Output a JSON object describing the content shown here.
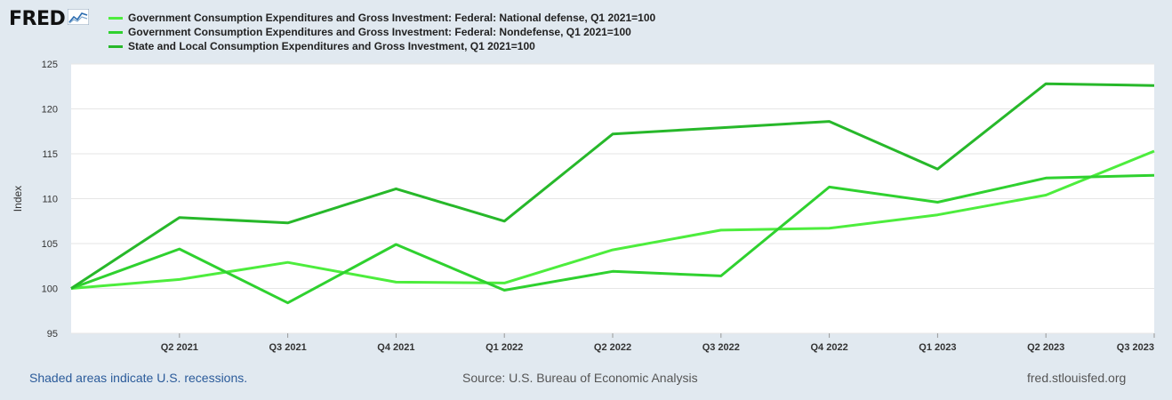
{
  "header": {
    "logo_text": "FRED",
    "logo_icon": "chart-line-icon"
  },
  "colors": {
    "series1": "#4ded3d",
    "series2": "#2fd12f",
    "series3": "#27b82a",
    "background": "#e1e9f0",
    "plot_bg": "#ffffff",
    "grid": "#e6e6e6"
  },
  "chart_data": {
    "type": "line",
    "title": "",
    "xlabel": "",
    "ylabel": "Index",
    "ylim": [
      95,
      125
    ],
    "yticks": [
      95,
      100,
      105,
      110,
      115,
      120,
      125
    ],
    "x": [
      "Q1 2021",
      "Q2 2021",
      "Q3 2021",
      "Q4 2021",
      "Q1 2022",
      "Q2 2022",
      "Q3 2022",
      "Q4 2022",
      "Q1 2023",
      "Q2 2023",
      "Q3 2023"
    ],
    "xtick_labels": [
      "Q2 2021",
      "Q3 2021",
      "Q4 2021",
      "Q1 2022",
      "Q2 2022",
      "Q3 2022",
      "Q4 2022",
      "Q1 2023",
      "Q2 2023",
      "Q3 2023"
    ],
    "series": [
      {
        "name": "Government Consumption Expenditures and Gross Investment: Federal: National defense, Q1 2021=100",
        "values": [
          100,
          101.0,
          102.9,
          100.7,
          100.6,
          104.3,
          106.5,
          106.7,
          108.2,
          110.4,
          115.3
        ]
      },
      {
        "name": "Government Consumption Expenditures and Gross Investment: Federal: Nondefense, Q1 2021=100",
        "values": [
          100,
          104.4,
          98.4,
          104.9,
          99.8,
          101.9,
          101.4,
          111.3,
          109.6,
          112.3,
          112.6
        ]
      },
      {
        "name": "State and Local Consumption Expenditures and Gross Investment, Q1 2021=100",
        "values": [
          100,
          107.9,
          107.3,
          111.1,
          107.5,
          117.2,
          117.9,
          118.6,
          113.3,
          122.8,
          122.6
        ]
      }
    ],
    "grid": true
  },
  "footer": {
    "recession_note": "Shaded areas indicate U.S. recessions.",
    "source": "Source: U.S. Bureau of Economic Analysis",
    "site": "fred.stlouisfed.org"
  }
}
